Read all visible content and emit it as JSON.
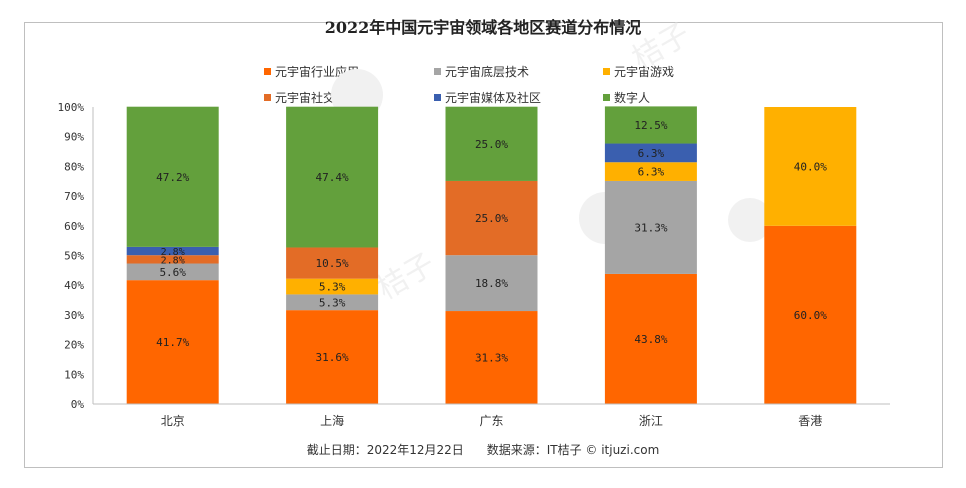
{
  "chart_data": {
    "type": "bar",
    "stacked": true,
    "title": "2022年中国元宇宙领域各地区赛道分布情况",
    "categories": [
      "北京",
      "上海",
      "广东",
      "浙江",
      "香港"
    ],
    "ylim": [
      0,
      100
    ],
    "yticks": [
      "0%",
      "10%",
      "20%",
      "30%",
      "40%",
      "50%",
      "60%",
      "70%",
      "80%",
      "90%",
      "100%"
    ],
    "series": [
      {
        "name": "元宇宙行业应用",
        "color": "#ff6600",
        "values": [
          41.7,
          31.6,
          31.3,
          43.8,
          60.0
        ],
        "labels": [
          "41.7%",
          "31.6%",
          "31.3%",
          "43.8%",
          "60.0%"
        ]
      },
      {
        "name": "元宇宙底层技术",
        "color": "#a5a5a5",
        "values": [
          5.6,
          5.3,
          18.8,
          31.3,
          0
        ],
        "labels": [
          "5.6%",
          "5.3%",
          "18.8%",
          "31.3%",
          ""
        ]
      },
      {
        "name": "元宇宙游戏",
        "color": "#ffb000",
        "values": [
          0,
          5.3,
          0,
          6.3,
          40.0
        ],
        "labels": [
          "",
          "5.3%",
          "",
          "6.3%",
          "40.0%"
        ]
      },
      {
        "name": "元宇宙社交",
        "color": "#e36c26",
        "values": [
          2.8,
          10.5,
          25.0,
          0,
          0
        ],
        "labels": [
          "2.8%",
          "10.5%",
          "25.0%",
          "",
          ""
        ]
      },
      {
        "name": "元宇宙媒体及社区",
        "color": "#3a5faf",
        "values": [
          2.8,
          0,
          0,
          6.3,
          0
        ],
        "labels": [
          "2.8%",
          "",
          "",
          "6.3%",
          ""
        ]
      },
      {
        "name": "数字人",
        "color": "#63a03c",
        "values": [
          47.2,
          47.4,
          25.0,
          12.5,
          0
        ],
        "labels": [
          "47.2%",
          "47.4%",
          "25.0%",
          "12.5%",
          ""
        ]
      }
    ]
  },
  "footer": {
    "date_label": "截止日期：2022年12月22日",
    "source_label": "数据来源：IT桔子 © itjuzi.com"
  },
  "watermark": "桔子"
}
